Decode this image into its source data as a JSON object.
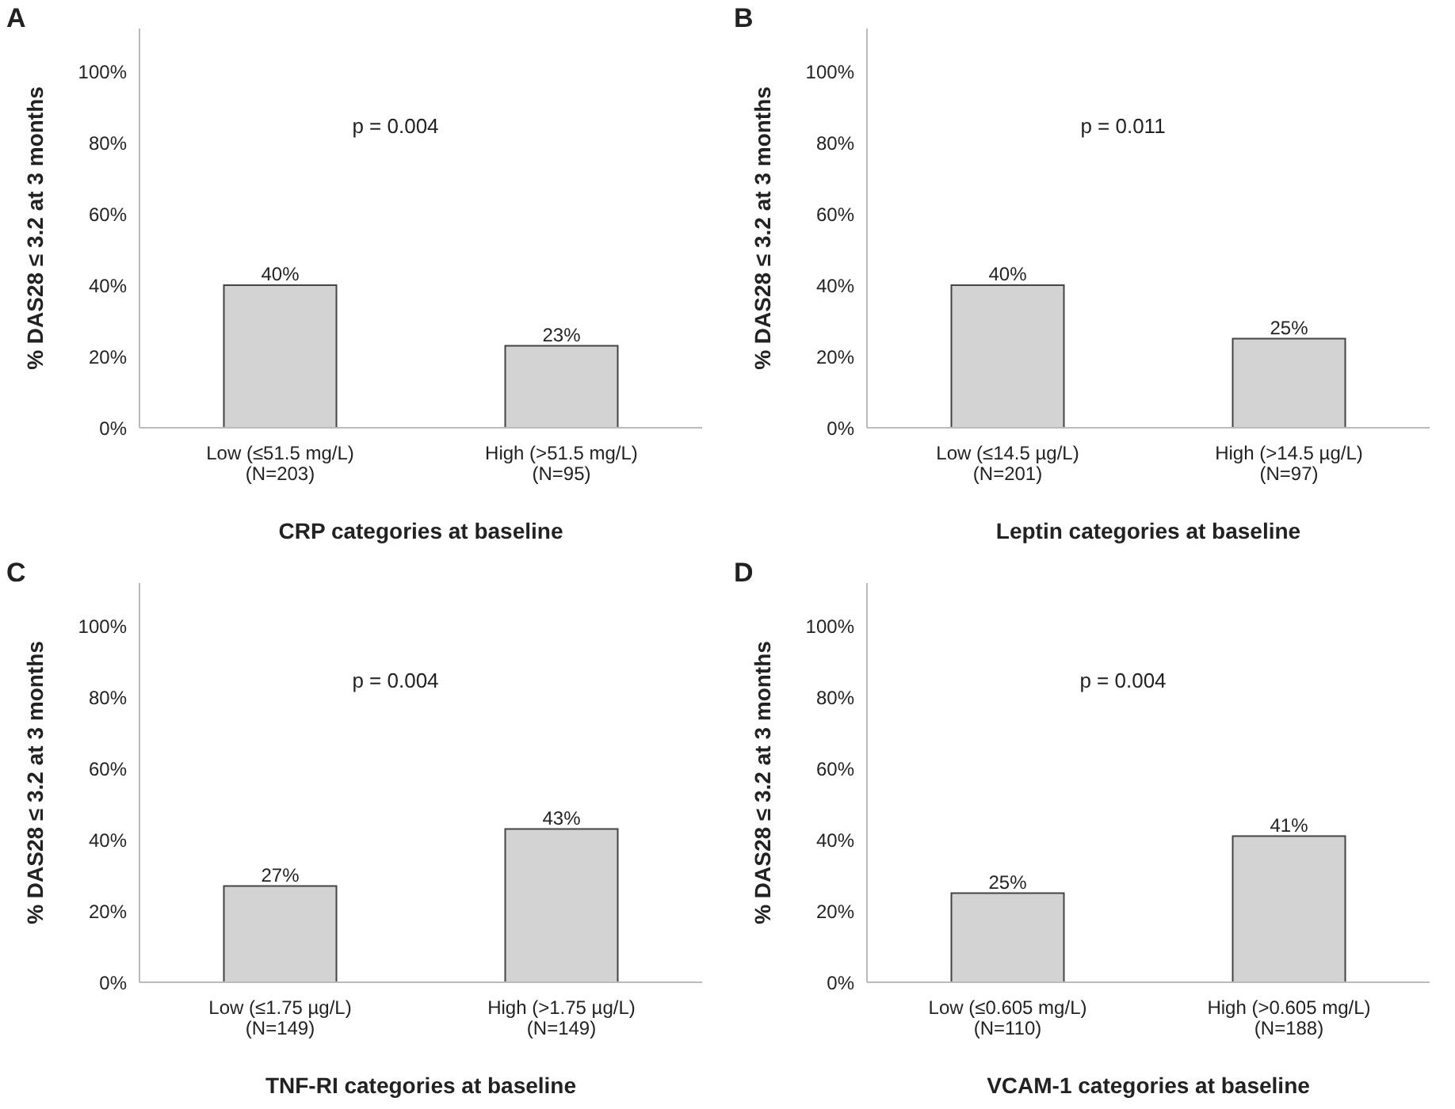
{
  "chart_data": [
    {
      "type": "bar",
      "title": "A",
      "xlabel": "CRP categories at baseline",
      "ylabel": "% DAS28 ≤ 3.2 at 3 months",
      "categories": [
        "Low (≤51.5 mg/L)\n(N=203)",
        "High (>51.5 mg/L)\n(N=95)"
      ],
      "values": [
        40,
        23
      ],
      "value_labels": [
        "40%",
        "23%"
      ],
      "color": "#d3d3d3",
      "ylim": [
        0,
        112
      ],
      "yticks": [
        {
          "value": 0,
          "label": "0%"
        },
        {
          "value": 20,
          "label": "20%"
        },
        {
          "value": 40,
          "label": "40%"
        },
        {
          "value": 60,
          "label": "60%"
        },
        {
          "value": 80,
          "label": "80%"
        },
        {
          "value": 100,
          "label": "100%"
        }
      ],
      "annotations": [
        "p = 0.004"
      ]
    },
    {
      "type": "bar",
      "title": "B",
      "xlabel": "Leptin categories at baseline",
      "ylabel": "% DAS28 ≤ 3.2 at 3 months",
      "categories": [
        "Low (≤14.5 µg/L)\n(N=201)",
        "High (>14.5 µg/L)\n(N=97)"
      ],
      "values": [
        40,
        25
      ],
      "value_labels": [
        "40%",
        "25%"
      ],
      "color": "#d3d3d3",
      "ylim": [
        0,
        112
      ],
      "yticks": [
        {
          "value": 0,
          "label": "0%"
        },
        {
          "value": 20,
          "label": "20%"
        },
        {
          "value": 40,
          "label": "40%"
        },
        {
          "value": 60,
          "label": "60%"
        },
        {
          "value": 80,
          "label": "80%"
        },
        {
          "value": 100,
          "label": "100%"
        }
      ],
      "annotations": [
        "p = 0.011"
      ]
    },
    {
      "type": "bar",
      "title": "C",
      "xlabel": "TNF-RI categories at baseline",
      "ylabel": "% DAS28 ≤ 3.2 at 3 months",
      "categories": [
        "Low (≤1.75 µg/L)\n(N=149)",
        "High (>1.75 µg/L)\n(N=149)"
      ],
      "values": [
        27,
        43
      ],
      "value_labels": [
        "27%",
        "43%"
      ],
      "color": "#d3d3d3",
      "ylim": [
        0,
        112
      ],
      "yticks": [
        {
          "value": 0,
          "label": "0%"
        },
        {
          "value": 20,
          "label": "20%"
        },
        {
          "value": 40,
          "label": "40%"
        },
        {
          "value": 60,
          "label": "60%"
        },
        {
          "value": 80,
          "label": "80%"
        },
        {
          "value": 100,
          "label": "100%"
        }
      ],
      "annotations": [
        "p = 0.004"
      ]
    },
    {
      "type": "bar",
      "title": "D",
      "xlabel": "VCAM-1 categories at baseline",
      "ylabel": "% DAS28 ≤ 3.2 at 3 months",
      "categories": [
        "Low (≤0.605 mg/L)\n(N=110)",
        "High (>0.605 mg/L)\n(N=188)"
      ],
      "values": [
        25,
        41
      ],
      "value_labels": [
        "25%",
        "41%"
      ],
      "color": "#d3d3d3",
      "ylim": [
        0,
        112
      ],
      "yticks": [
        {
          "value": 0,
          "label": "0%"
        },
        {
          "value": 20,
          "label": "20%"
        },
        {
          "value": 40,
          "label": "40%"
        },
        {
          "value": 60,
          "label": "60%"
        },
        {
          "value": 80,
          "label": "80%"
        },
        {
          "value": 100,
          "label": "100%"
        }
      ],
      "annotations": [
        "p = 0.004"
      ]
    }
  ]
}
